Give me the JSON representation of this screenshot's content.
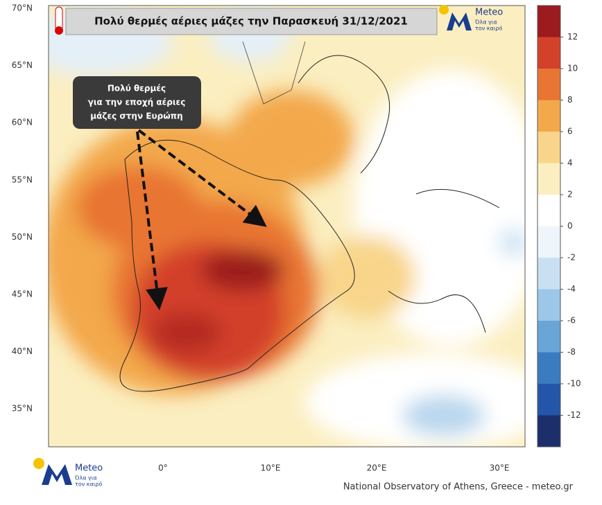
{
  "title": "Πολύ θερμές αέριες μάζες την Παρασκευή 31/12/2021",
  "annotation": [
    "Πολύ θερμές",
    "για την εποχή αέριες",
    "μάζες στην Ευρώπη"
  ],
  "latitude_labels": [
    "70°N",
    "65°N",
    "60°N",
    "55°N",
    "50°N",
    "45°N",
    "40°N",
    "35°N"
  ],
  "longitude_labels": [
    "0°",
    "10°E",
    "20°E",
    "30°E"
  ],
  "colorbar": {
    "lim": [
      -14,
      14
    ],
    "ticks": [
      -12,
      -10,
      -8,
      -6,
      -4,
      -2,
      0,
      2,
      4,
      6,
      8,
      10,
      12
    ],
    "colors": [
      "#1c2f6b",
      "#2356a8",
      "#3b7bc0",
      "#6aa5d8",
      "#9cc7e8",
      "#c8e0f2",
      "#eef5fb",
      "#ffffff",
      "#fbeec0",
      "#f8d58a",
      "#f3a84c",
      "#e87533",
      "#d3412a",
      "#9b1b1e"
    ]
  },
  "logo": {
    "name": "Meteo",
    "slogan": [
      "Όλα για",
      "τον καιρό"
    ]
  },
  "credit": "National Observatory of Athens, Greece - meteo.gr"
}
